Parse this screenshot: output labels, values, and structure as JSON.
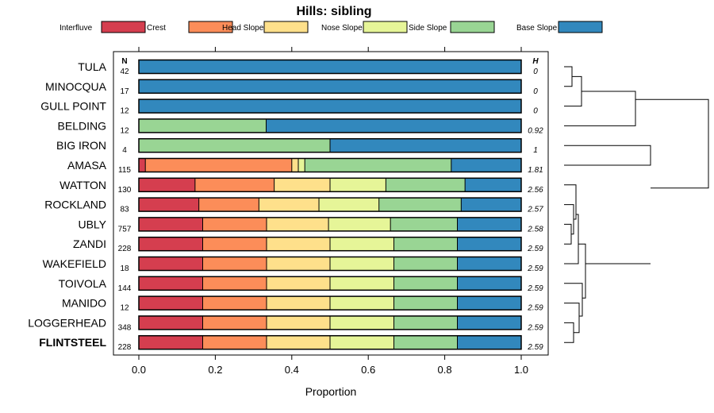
{
  "chart_data": {
    "type": "bar",
    "stacked": true,
    "orientation": "horizontal",
    "title": "Hills: sibling",
    "xlabel": "Proportion",
    "ylabel": "",
    "xlim": [
      0,
      1
    ],
    "xticks": [
      0.0,
      0.2,
      0.4,
      0.6,
      0.8,
      1.0
    ],
    "xtick_labels": [
      "0.0",
      "0.2",
      "0.4",
      "0.6",
      "0.8",
      "1.0"
    ],
    "n_header": "N",
    "h_header": "H",
    "legend": [
      {
        "name": "Interfluve",
        "color": "#d53e4f"
      },
      {
        "name": "Crest",
        "color": "#fc8d59"
      },
      {
        "name": "Head Slope",
        "color": "#fee08b"
      },
      {
        "name": "Nose Slope",
        "color": "#e6f598"
      },
      {
        "name": "Side Slope",
        "color": "#99d594"
      },
      {
        "name": "Base Slope",
        "color": "#3288bd"
      }
    ],
    "rows": [
      {
        "name": "TULA",
        "n": "42",
        "h": "0",
        "values": [
          0,
          0,
          0,
          0,
          0,
          1.0
        ]
      },
      {
        "name": "MINOCQUA",
        "n": "17",
        "h": "0",
        "values": [
          0,
          0,
          0,
          0,
          0,
          1.0
        ]
      },
      {
        "name": "GULL POINT",
        "n": "12",
        "h": "0",
        "values": [
          0,
          0,
          0,
          0,
          0,
          1.0
        ]
      },
      {
        "name": "BELDING",
        "n": "12",
        "h": "0.92",
        "values": [
          0,
          0,
          0,
          0,
          0.333,
          0.667
        ]
      },
      {
        "name": "BIG IRON",
        "n": "4",
        "h": "1",
        "values": [
          0,
          0,
          0,
          0,
          0.5,
          0.5
        ]
      },
      {
        "name": "AMASA",
        "n": "115",
        "h": "1.81",
        "values": [
          0.017,
          0.383,
          0.017,
          0.017,
          0.383,
          0.183
        ]
      },
      {
        "name": "WATTON",
        "n": "130",
        "h": "2.56",
        "values": [
          0.147,
          0.207,
          0.146,
          0.146,
          0.207,
          0.147
        ]
      },
      {
        "name": "ROCKLAND",
        "n": "83",
        "h": "2.57",
        "values": [
          0.157,
          0.157,
          0.157,
          0.157,
          0.215,
          0.157
        ]
      },
      {
        "name": "UBLY",
        "n": "757",
        "h": "2.58",
        "values": [
          0.167,
          0.167,
          0.162,
          0.162,
          0.175,
          0.167
        ]
      },
      {
        "name": "ZANDI",
        "n": "228",
        "h": "2.59",
        "values": [
          0.167,
          0.167,
          0.166,
          0.167,
          0.166,
          0.167
        ]
      },
      {
        "name": "WAKEFIELD",
        "n": "18",
        "h": "2.59",
        "values": [
          0.167,
          0.167,
          0.166,
          0.167,
          0.166,
          0.167
        ]
      },
      {
        "name": "TOIVOLA",
        "n": "144",
        "h": "2.59",
        "values": [
          0.167,
          0.167,
          0.166,
          0.167,
          0.166,
          0.167
        ]
      },
      {
        "name": "MANIDO",
        "n": "12",
        "h": "2.59",
        "values": [
          0.167,
          0.167,
          0.166,
          0.167,
          0.166,
          0.167
        ]
      },
      {
        "name": "LOGGERHEAD",
        "n": "348",
        "h": "2.59",
        "values": [
          0.167,
          0.167,
          0.166,
          0.167,
          0.166,
          0.167
        ]
      },
      {
        "name": "FLINTSTEEL",
        "n": "228",
        "h": "2.59",
        "values": [
          0.167,
          0.167,
          0.166,
          0.167,
          0.166,
          0.167
        ],
        "highlight": true
      }
    ]
  }
}
